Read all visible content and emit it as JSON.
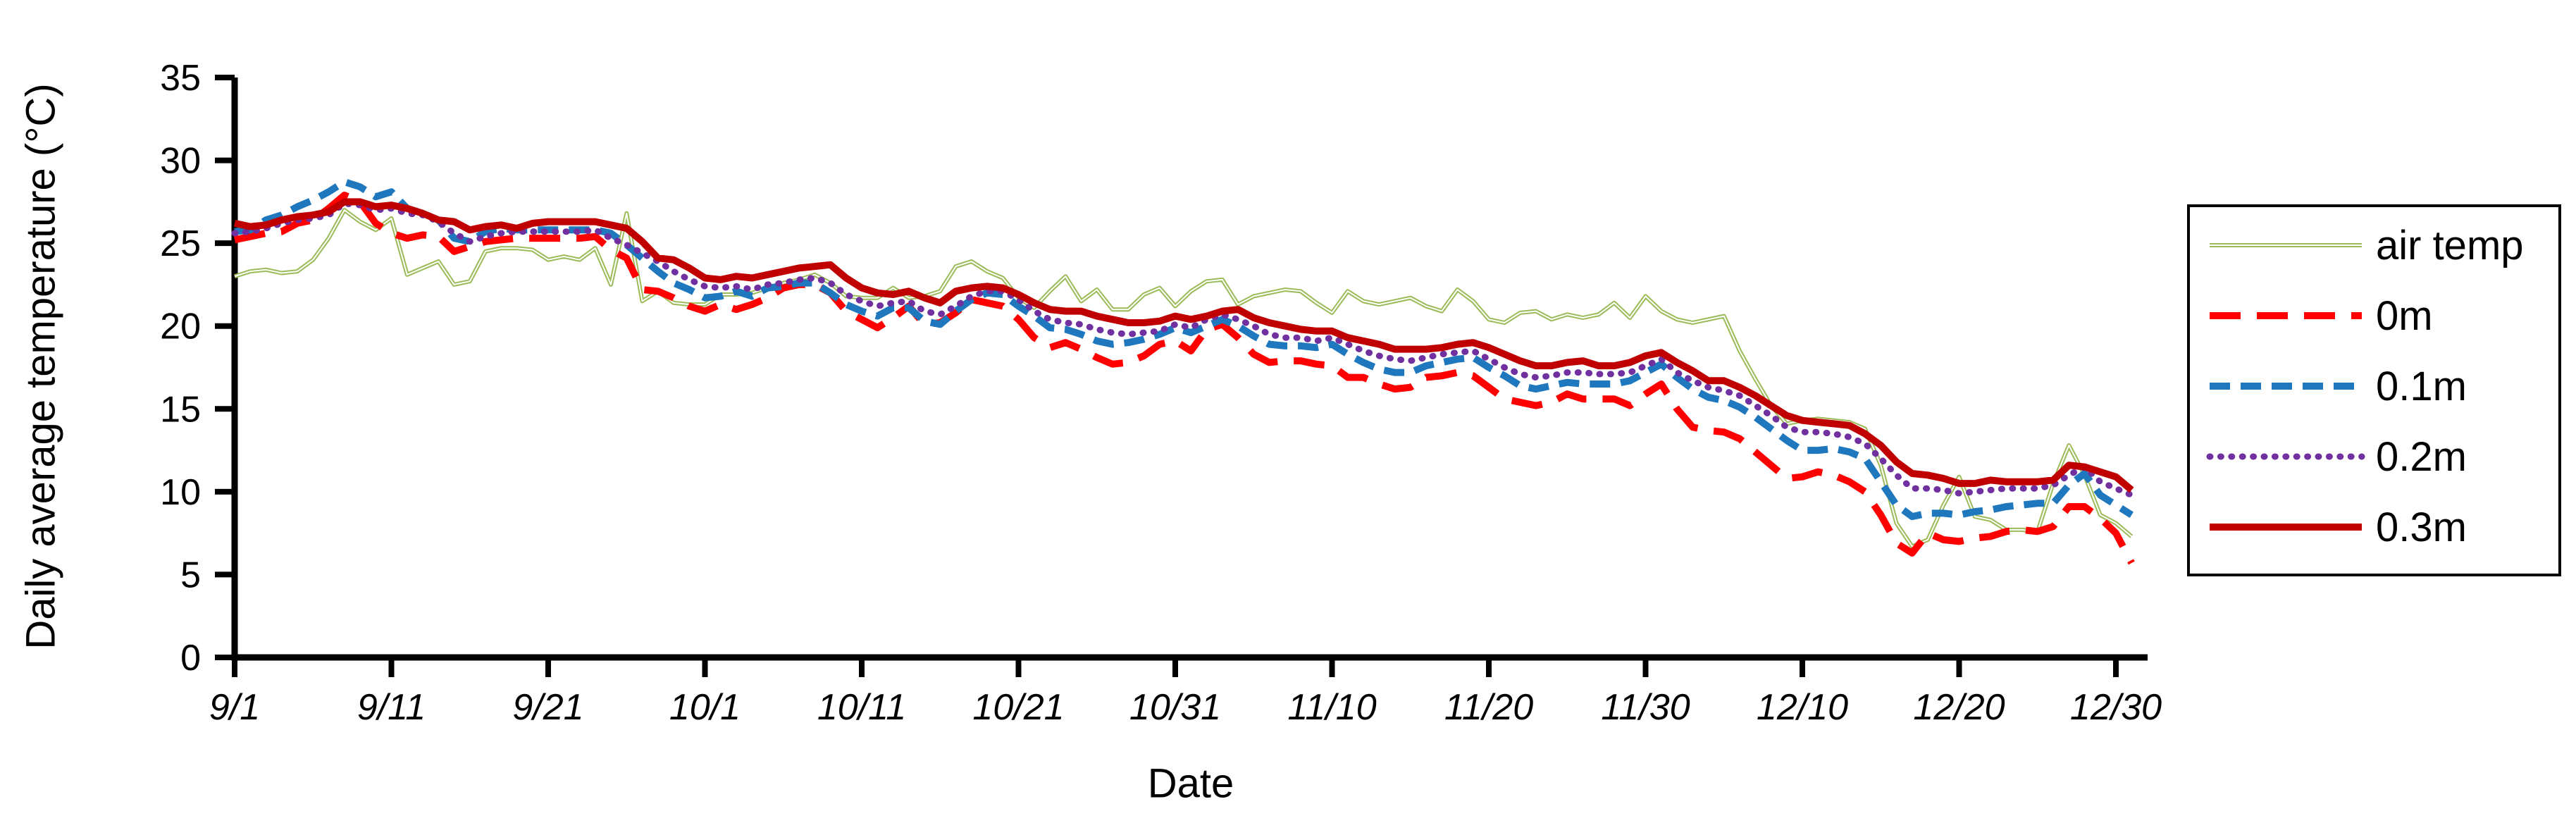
{
  "chart_data": {
    "type": "line",
    "title": "",
    "xlabel": "Date",
    "ylabel": "Daily average temperature (°C)",
    "ylim": [
      0,
      35
    ],
    "yticks": [
      35,
      30,
      25,
      20,
      15,
      10,
      5,
      0
    ],
    "grid": false,
    "legend_position": "right",
    "xtick_every": 10,
    "xtick_labels": [
      "9/1",
      "9/11",
      "9/21",
      "10/1",
      "10/11",
      "10/21",
      "10/31",
      "11/10",
      "11/20",
      "11/30",
      "12/10",
      "12/20",
      "12/30"
    ],
    "categories": [
      "9/1",
      "9/2",
      "9/3",
      "9/4",
      "9/5",
      "9/6",
      "9/7",
      "9/8",
      "9/9",
      "9/10",
      "9/11",
      "9/12",
      "9/13",
      "9/14",
      "9/15",
      "9/16",
      "9/17",
      "9/18",
      "9/19",
      "9/20",
      "9/21",
      "9/22",
      "9/23",
      "9/24",
      "9/25",
      "9/26",
      "9/27",
      "9/28",
      "9/29",
      "9/30",
      "10/1",
      "10/2",
      "10/3",
      "10/4",
      "10/5",
      "10/6",
      "10/7",
      "10/8",
      "10/9",
      "10/10",
      "10/11",
      "10/12",
      "10/13",
      "10/14",
      "10/15",
      "10/16",
      "10/17",
      "10/18",
      "10/19",
      "10/20",
      "10/21",
      "10/22",
      "10/23",
      "10/24",
      "10/25",
      "10/26",
      "10/27",
      "10/28",
      "10/29",
      "10/30",
      "10/31",
      "11/1",
      "11/2",
      "11/3",
      "11/4",
      "11/5",
      "11/6",
      "11/7",
      "11/8",
      "11/9",
      "11/10",
      "11/11",
      "11/12",
      "11/13",
      "11/14",
      "11/15",
      "11/16",
      "11/17",
      "11/18",
      "11/19",
      "11/20",
      "11/21",
      "11/22",
      "11/23",
      "11/24",
      "11/25",
      "11/26",
      "11/27",
      "11/28",
      "11/29",
      "11/30",
      "12/1",
      "12/2",
      "12/3",
      "12/4",
      "12/5",
      "12/6",
      "12/7",
      "12/8",
      "12/9",
      "12/10",
      "12/11",
      "12/12",
      "12/13",
      "12/14",
      "12/15",
      "12/16",
      "12/17",
      "12/18",
      "12/19",
      "12/20",
      "12/21",
      "12/22",
      "12/23",
      "12/24",
      "12/25",
      "12/26",
      "12/27",
      "12/28",
      "12/29",
      "12/30",
      "12/31"
    ],
    "series": [
      {
        "name": "air temp",
        "color": "#9BBB59",
        "style": "solid-double",
        "width": 6,
        "values": [
          23.0,
          23.3,
          23.4,
          23.2,
          23.3,
          24.0,
          25.3,
          27.0,
          26.3,
          25.8,
          26.5,
          23.1,
          23.5,
          23.9,
          22.5,
          22.7,
          24.5,
          24.7,
          24.7,
          24.6,
          24.0,
          24.2,
          24.0,
          24.7,
          22.5,
          26.8,
          21.5,
          22.1,
          21.4,
          21.3,
          21.3,
          21.9,
          21.9,
          22.0,
          22.3,
          22.6,
          22.8,
          23.1,
          22.6,
          21.8,
          21.7,
          21.7,
          22.3,
          21.7,
          21.8,
          22.1,
          23.6,
          23.9,
          23.3,
          22.9,
          21.7,
          21.1,
          22.1,
          23.0,
          21.5,
          22.2,
          21.0,
          21.0,
          21.9,
          22.3,
          21.2,
          22.1,
          22.7,
          22.8,
          21.3,
          21.8,
          22.0,
          22.2,
          22.1,
          21.4,
          20.8,
          22.1,
          21.5,
          21.3,
          21.5,
          21.7,
          21.2,
          20.9,
          22.2,
          21.5,
          20.4,
          20.2,
          20.8,
          20.9,
          20.4,
          20.7,
          20.5,
          20.7,
          21.4,
          20.5,
          21.8,
          20.9,
          20.4,
          20.2,
          20.4,
          20.6,
          18.5,
          16.8,
          15.2,
          14.1,
          14.3,
          14.4,
          14.3,
          14.2,
          13.8,
          11.6,
          8.1,
          6.7,
          7.1,
          9.2,
          10.9,
          8.5,
          8.3,
          7.7,
          7.7,
          7.6,
          10.5,
          12.8,
          11.0,
          8.6,
          8.1,
          7.3
        ]
      },
      {
        "name": "0m",
        "color": "#FF0000",
        "style": "dash-long",
        "width": 10,
        "values": [
          25.2,
          25.4,
          25.6,
          25.7,
          26.2,
          26.4,
          27.1,
          27.9,
          27.5,
          26.2,
          25.6,
          25.3,
          25.5,
          25.4,
          24.5,
          24.8,
          25.1,
          25.2,
          25.3,
          25.3,
          25.3,
          25.3,
          25.3,
          25.4,
          24.6,
          24.1,
          22.2,
          22.1,
          21.7,
          21.2,
          20.9,
          21.3,
          21.0,
          21.3,
          21.7,
          22.3,
          22.5,
          22.5,
          22.0,
          20.9,
          20.4,
          19.9,
          20.5,
          21.2,
          20.1,
          20.2,
          20.8,
          21.6,
          21.4,
          21.2,
          20.4,
          19.3,
          18.7,
          19.0,
          18.6,
          18.1,
          17.7,
          17.8,
          18.2,
          18.9,
          19.1,
          18.5,
          19.8,
          20.1,
          19.3,
          18.3,
          17.8,
          17.9,
          17.9,
          17.7,
          17.6,
          16.9,
          16.9,
          16.5,
          16.2,
          16.3,
          16.9,
          17.0,
          17.2,
          17.0,
          16.3,
          15.6,
          15.4,
          15.2,
          15.4,
          15.9,
          15.6,
          15.6,
          15.6,
          15.2,
          15.9,
          16.5,
          15.0,
          13.9,
          13.7,
          13.6,
          13.2,
          12.4,
          11.6,
          10.8,
          10.9,
          11.2,
          11.0,
          10.6,
          10.0,
          8.6,
          6.9,
          6.3,
          7.5,
          7.1,
          7.0,
          7.2,
          7.3,
          7.6,
          7.7,
          7.6,
          7.9,
          9.1,
          9.1,
          8.4,
          7.5,
          5.7
        ]
      },
      {
        "name": "0.1m",
        "color": "#1F78BE",
        "style": "dash",
        "width": 10,
        "values": [
          25.7,
          25.8,
          26.4,
          26.7,
          27.2,
          27.6,
          28.1,
          28.7,
          28.4,
          27.8,
          28.1,
          27.1,
          26.8,
          26.4,
          25.3,
          25.1,
          25.7,
          25.9,
          25.8,
          25.8,
          25.8,
          25.8,
          25.8,
          25.8,
          25.6,
          24.9,
          24.1,
          23.3,
          22.6,
          22.2,
          21.7,
          21.8,
          22.1,
          21.8,
          22.3,
          22.4,
          22.6,
          22.6,
          22.0,
          21.3,
          20.9,
          20.6,
          21.1,
          21.1,
          20.3,
          20.1,
          20.9,
          21.6,
          22.0,
          21.9,
          21.2,
          20.6,
          19.9,
          19.8,
          19.5,
          19.1,
          18.9,
          19.0,
          19.2,
          19.5,
          19.9,
          19.6,
          20.0,
          20.4,
          20.0,
          19.4,
          18.9,
          18.8,
          18.8,
          18.7,
          18.9,
          18.3,
          17.8,
          17.4,
          17.2,
          17.2,
          17.6,
          17.8,
          18.0,
          18.1,
          17.5,
          17.0,
          16.4,
          16.2,
          16.4,
          16.6,
          16.5,
          16.5,
          16.5,
          16.7,
          17.2,
          17.7,
          16.9,
          16.2,
          15.7,
          15.5,
          15.1,
          14.5,
          13.8,
          13.1,
          12.5,
          12.5,
          12.6,
          12.4,
          12.0,
          10.6,
          9.2,
          8.5,
          8.7,
          8.7,
          8.6,
          8.8,
          8.9,
          9.1,
          9.2,
          9.3,
          9.3,
          10.4,
          11.1,
          9.8,
          9.2,
          8.6
        ]
      },
      {
        "name": "0.2m",
        "color": "#7030A0",
        "style": "dot",
        "width": 9,
        "values": [
          25.6,
          25.7,
          25.9,
          26.2,
          26.4,
          26.5,
          26.7,
          27.4,
          27.3,
          27.0,
          27.1,
          26.8,
          26.7,
          26.3,
          25.6,
          25.1,
          25.4,
          25.6,
          25.7,
          25.7,
          25.7,
          25.7,
          25.7,
          25.8,
          25.3,
          24.9,
          24.4,
          23.9,
          23.3,
          22.8,
          22.4,
          22.3,
          22.4,
          22.2,
          22.5,
          22.6,
          22.8,
          22.9,
          22.6,
          21.9,
          21.5,
          21.2,
          21.4,
          21.5,
          20.9,
          20.7,
          21.2,
          21.8,
          22.1,
          22.1,
          21.6,
          20.9,
          20.4,
          20.2,
          20.1,
          19.8,
          19.6,
          19.5,
          19.6,
          19.7,
          20.1,
          19.9,
          20.4,
          20.7,
          20.4,
          20.0,
          19.5,
          19.3,
          19.3,
          19.1,
          19.3,
          18.9,
          18.5,
          18.2,
          18.0,
          17.9,
          18.1,
          18.3,
          18.4,
          18.5,
          18.0,
          17.5,
          17.1,
          16.9,
          17.0,
          17.2,
          17.2,
          17.1,
          17.1,
          17.2,
          17.6,
          18.0,
          17.2,
          16.7,
          16.3,
          16.1,
          15.8,
          15.2,
          14.6,
          13.9,
          13.6,
          13.6,
          13.5,
          13.3,
          12.9,
          12.0,
          11.0,
          10.2,
          10.2,
          10.1,
          9.9,
          10.0,
          10.1,
          10.2,
          10.2,
          10.2,
          10.4,
          11.0,
          11.5,
          10.6,
          10.2,
          9.8
        ]
      },
      {
        "name": "0.3m",
        "color": "#C00000",
        "style": "solid",
        "width": 10,
        "values": [
          26.2,
          26.0,
          26.1,
          26.4,
          26.6,
          26.7,
          26.9,
          27.5,
          27.5,
          27.2,
          27.3,
          27.1,
          26.8,
          26.4,
          26.3,
          25.8,
          26.0,
          26.1,
          25.9,
          26.2,
          26.3,
          26.3,
          26.3,
          26.3,
          26.1,
          25.9,
          25.1,
          24.1,
          24.0,
          23.5,
          22.9,
          22.8,
          23.0,
          22.9,
          23.1,
          23.3,
          23.5,
          23.6,
          23.7,
          22.9,
          22.3,
          22.0,
          21.9,
          22.1,
          21.7,
          21.4,
          22.1,
          22.3,
          22.4,
          22.3,
          21.9,
          21.4,
          21.0,
          20.9,
          20.9,
          20.6,
          20.4,
          20.2,
          20.2,
          20.3,
          20.6,
          20.4,
          20.6,
          20.9,
          21.0,
          20.5,
          20.2,
          20.0,
          19.8,
          19.7,
          19.7,
          19.3,
          19.1,
          18.9,
          18.6,
          18.6,
          18.6,
          18.7,
          18.9,
          19.0,
          18.7,
          18.3,
          17.9,
          17.6,
          17.6,
          17.8,
          17.9,
          17.6,
          17.6,
          17.8,
          18.2,
          18.4,
          17.8,
          17.3,
          16.7,
          16.7,
          16.3,
          15.8,
          15.2,
          14.6,
          14.3,
          14.2,
          14.1,
          14.0,
          13.5,
          12.8,
          11.8,
          11.1,
          11.0,
          10.8,
          10.5,
          10.5,
          10.7,
          10.6,
          10.6,
          10.6,
          10.7,
          11.6,
          11.5,
          11.2,
          10.9,
          10.1
        ]
      }
    ]
  }
}
